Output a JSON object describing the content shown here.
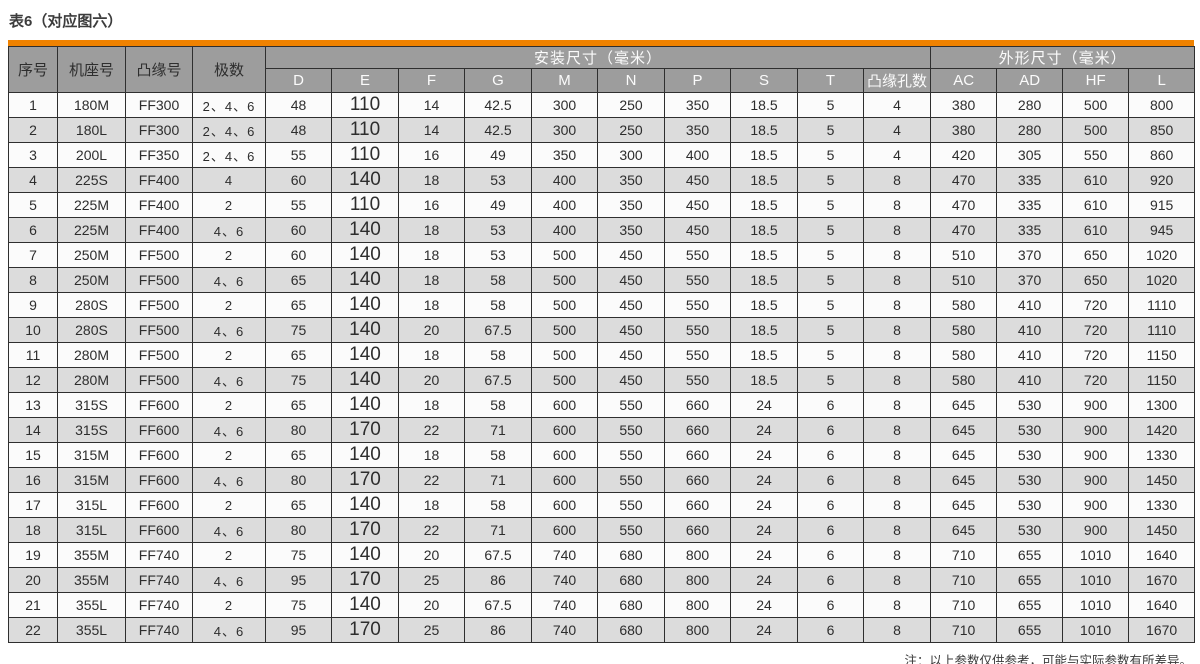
{
  "page": {
    "title": "表6（对应图六）",
    "note": "注：以上参数仅供参考，可能与实际参数有所差异。"
  },
  "colors": {
    "accent_orange": "#ef8200",
    "header_gray": "#9d9d9d",
    "row_alt_gray": "#dcdcdc"
  },
  "table": {
    "headers": {
      "seq": "序号",
      "frame": "机座号",
      "flange": "凸缘号",
      "poles": "极数",
      "install_group": "安装尺寸（毫米）",
      "outline_group": "外形尺寸（毫米）",
      "install_cols": [
        "D",
        "E",
        "F",
        "G",
        "M",
        "N",
        "P",
        "S",
        "T",
        "凸缘孔数"
      ],
      "outline_cols": [
        "AC",
        "AD",
        "HF",
        "L"
      ]
    },
    "rows": [
      [
        1,
        "180M",
        "FF300",
        "2、4、6",
        48,
        110,
        14,
        42.5,
        300,
        250,
        350,
        18.5,
        5,
        4,
        380,
        280,
        500,
        800
      ],
      [
        2,
        "180L",
        "FF300",
        "2、4、6",
        48,
        110,
        14,
        42.5,
        300,
        250,
        350,
        18.5,
        5,
        4,
        380,
        280,
        500,
        850
      ],
      [
        3,
        "200L",
        "FF350",
        "2、4、6",
        55,
        110,
        16,
        49,
        350,
        300,
        400,
        18.5,
        5,
        4,
        420,
        305,
        550,
        860
      ],
      [
        4,
        "225S",
        "FF400",
        "4",
        60,
        140,
        18,
        53,
        400,
        350,
        450,
        18.5,
        5,
        8,
        470,
        335,
        610,
        920
      ],
      [
        5,
        "225M",
        "FF400",
        "2",
        55,
        110,
        16,
        49,
        400,
        350,
        450,
        18.5,
        5,
        8,
        470,
        335,
        610,
        915
      ],
      [
        6,
        "225M",
        "FF400",
        "4、6",
        60,
        140,
        18,
        53,
        400,
        350,
        450,
        18.5,
        5,
        8,
        470,
        335,
        610,
        945
      ],
      [
        7,
        "250M",
        "FF500",
        "2",
        60,
        140,
        18,
        53,
        500,
        450,
        550,
        18.5,
        5,
        8,
        510,
        370,
        650,
        1020
      ],
      [
        8,
        "250M",
        "FF500",
        "4、6",
        65,
        140,
        18,
        58,
        500,
        450,
        550,
        18.5,
        5,
        8,
        510,
        370,
        650,
        1020
      ],
      [
        9,
        "280S",
        "FF500",
        "2",
        65,
        140,
        18,
        58,
        500,
        450,
        550,
        18.5,
        5,
        8,
        580,
        410,
        720,
        1110
      ],
      [
        10,
        "280S",
        "FF500",
        "4、6",
        75,
        140,
        20,
        67.5,
        500,
        450,
        550,
        18.5,
        5,
        8,
        580,
        410,
        720,
        1110
      ],
      [
        11,
        "280M",
        "FF500",
        "2",
        65,
        140,
        18,
        58,
        500,
        450,
        550,
        18.5,
        5,
        8,
        580,
        410,
        720,
        1150
      ],
      [
        12,
        "280M",
        "FF500",
        "4、6",
        75,
        140,
        20,
        67.5,
        500,
        450,
        550,
        18.5,
        5,
        8,
        580,
        410,
        720,
        1150
      ],
      [
        13,
        "315S",
        "FF600",
        "2",
        65,
        140,
        18,
        58,
        600,
        550,
        660,
        24,
        6,
        8,
        645,
        530,
        900,
        1300
      ],
      [
        14,
        "315S",
        "FF600",
        "4、6",
        80,
        170,
        22,
        71,
        600,
        550,
        660,
        24,
        6,
        8,
        645,
        530,
        900,
        1420
      ],
      [
        15,
        "315M",
        "FF600",
        "2",
        65,
        140,
        18,
        58,
        600,
        550,
        660,
        24,
        6,
        8,
        645,
        530,
        900,
        1330
      ],
      [
        16,
        "315M",
        "FF600",
        "4、6",
        80,
        170,
        22,
        71,
        600,
        550,
        660,
        24,
        6,
        8,
        645,
        530,
        900,
        1450
      ],
      [
        17,
        "315L",
        "FF600",
        "2",
        65,
        140,
        18,
        58,
        600,
        550,
        660,
        24,
        6,
        8,
        645,
        530,
        900,
        1330
      ],
      [
        18,
        "315L",
        "FF600",
        "4、6",
        80,
        170,
        22,
        71,
        600,
        550,
        660,
        24,
        6,
        8,
        645,
        530,
        900,
        1450
      ],
      [
        19,
        "355M",
        "FF740",
        "2",
        75,
        140,
        20,
        67.5,
        740,
        680,
        800,
        24,
        6,
        8,
        710,
        655,
        1010,
        1640
      ],
      [
        20,
        "355M",
        "FF740",
        "4、6",
        95,
        170,
        25,
        86,
        740,
        680,
        800,
        24,
        6,
        8,
        710,
        655,
        1010,
        1670
      ],
      [
        21,
        "355L",
        "FF740",
        "2",
        75,
        140,
        20,
        67.5,
        740,
        680,
        800,
        24,
        6,
        8,
        710,
        655,
        1010,
        1640
      ],
      [
        22,
        "355L",
        "FF740",
        "4、6",
        95,
        170,
        25,
        86,
        740,
        680,
        800,
        24,
        6,
        8,
        710,
        655,
        1010,
        1670
      ]
    ]
  }
}
